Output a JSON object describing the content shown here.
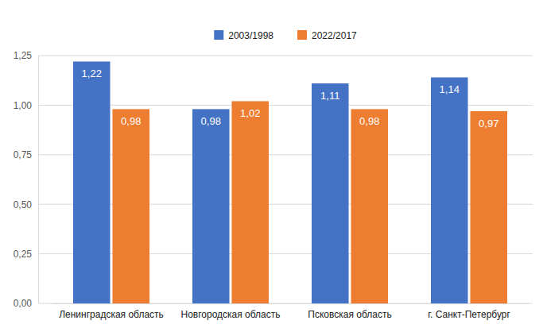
{
  "chart_data": {
    "type": "bar",
    "categories": [
      "Ленинградская область",
      "Новгородская область",
      "Псковская область",
      "г. Санкт-Петербург"
    ],
    "series": [
      {
        "name": "2003/1998",
        "color": "#4472c4",
        "values": [
          1.22,
          0.98,
          1.11,
          1.14
        ],
        "value_labels": [
          "1,22",
          "0,98",
          "1,11",
          "1,14"
        ]
      },
      {
        "name": "2022/2017",
        "color": "#ed7d31",
        "values": [
          0.98,
          1.02,
          0.98,
          0.97
        ],
        "value_labels": [
          "0,98",
          "1,02",
          "0,98",
          "0,97"
        ]
      }
    ],
    "ylim": [
      0,
      1.25
    ],
    "yticks": [
      {
        "value": 0,
        "label": "0,00"
      },
      {
        "value": 0.25,
        "label": "0,25"
      },
      {
        "value": 0.5,
        "label": "0,50"
      },
      {
        "value": 0.75,
        "label": "0,75"
      },
      {
        "value": 1,
        "label": "1,00"
      },
      {
        "value": 1.25,
        "label": "1,25"
      }
    ],
    "grid": true,
    "legend": "top",
    "data_labels": true
  }
}
